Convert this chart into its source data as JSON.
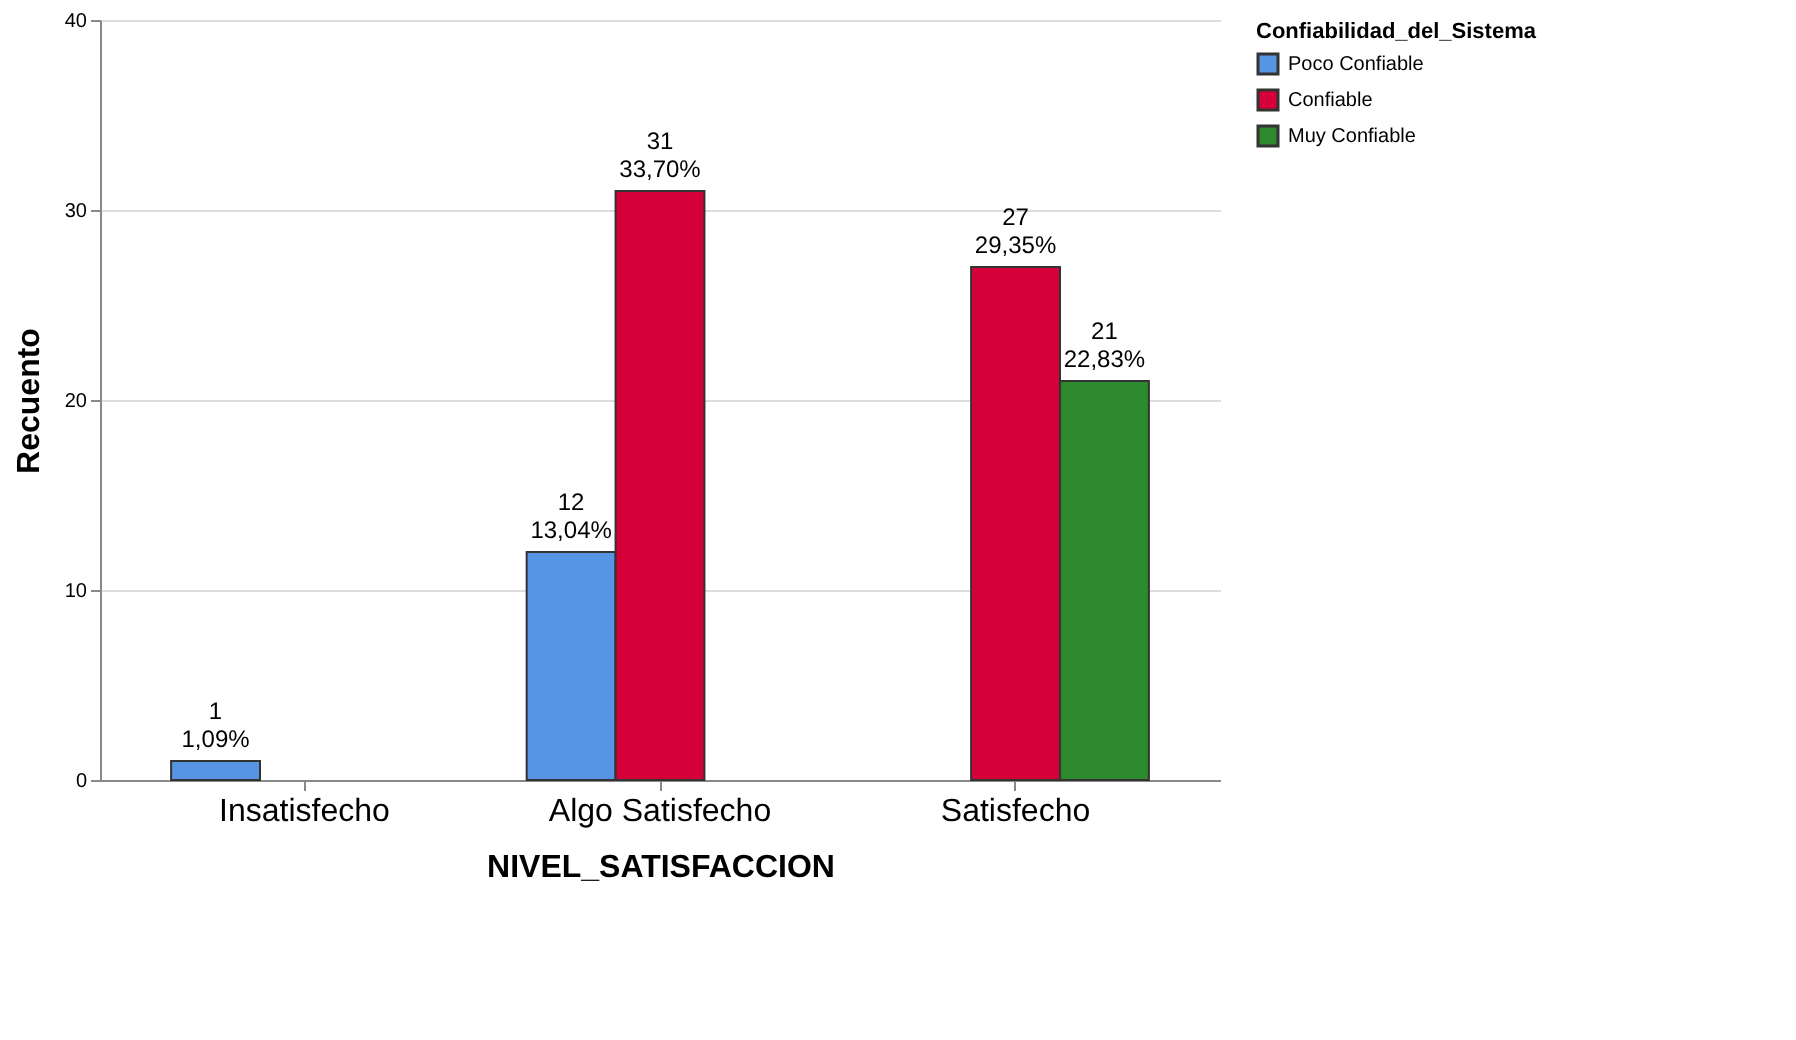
{
  "chart_data": {
    "type": "bar",
    "xlabel": "NIVEL_SATISFACCION",
    "ylabel": "Recuento",
    "legend_title": "Confiabilidad_del_Sistema",
    "categories": [
      "Insatisfecho",
      "Algo Satisfecho",
      "Satisfecho"
    ],
    "series": [
      {
        "name": "Poco Confiable",
        "color": "#5595e3",
        "values": [
          1,
          12,
          null
        ],
        "value_labels": [
          "1\n1,09%",
          "12\n13,04%",
          null
        ]
      },
      {
        "name": "Confiable",
        "color": "#d5003a",
        "values": [
          null,
          31,
          27
        ],
        "value_labels": [
          null,
          "31\n33,70%",
          "27\n29,35%"
        ]
      },
      {
        "name": "Muy Confiable",
        "color": "#2e8a2e",
        "values": [
          null,
          null,
          21
        ],
        "value_labels": [
          null,
          null,
          "21\n22,83%"
        ]
      }
    ],
    "ylim": [
      0,
      40
    ],
    "yticks": [
      0,
      10,
      20,
      30,
      40
    ],
    "grid": "y",
    "legend": "top right"
  }
}
